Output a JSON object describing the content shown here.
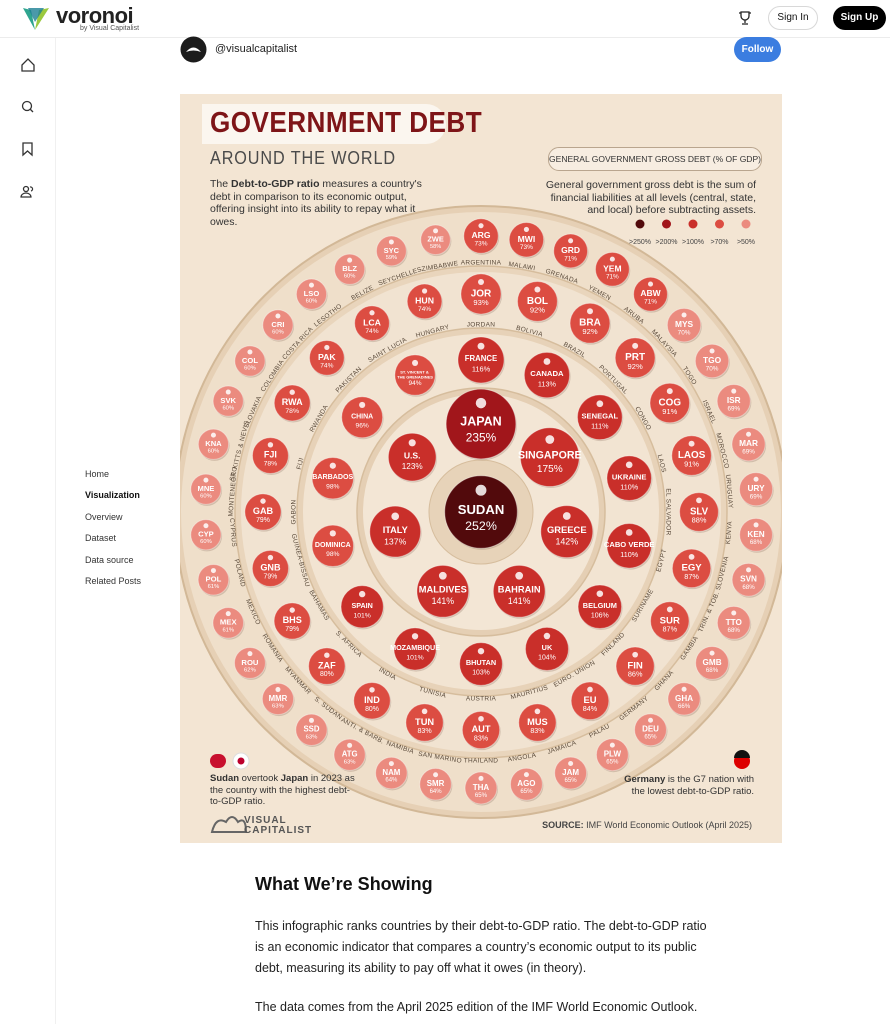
{
  "header": {
    "logo": "voronoi",
    "logo_sub": "by Visual Capitalist",
    "sign_in": "Sign In",
    "sign_up": "Sign Up"
  },
  "sidebar": {
    "nav": [
      "Home",
      "Visualization",
      "Overview",
      "Dataset",
      "Data source",
      "Related Posts"
    ]
  },
  "post": {
    "author": "@visualcapitalist",
    "follow": "Follow"
  },
  "infographic": {
    "title": "GOVERNMENT DEBT",
    "subtitle": "AROUND THE WORLD",
    "intro": [
      "The ",
      "Debt-to-GDP ratio",
      " measures a country's debt in comparison to its economic output, offering insight into its ability to repay what it owes."
    ],
    "legend_title": "GENERAL GOVERNMENT GROSS DEBT (% OF GDP)",
    "definition": "General government gross debt is the sum of financial liabilities at all levels (central, state, and local) before subtracting assets.",
    "legend": [
      {
        "label": ">250%",
        "min": 250,
        "color": "#520a0c"
      },
      {
        "label": ">200%",
        "min": 200,
        "color": "#a1161b"
      },
      {
        "label": ">100%",
        "min": 100,
        "color": "#c92f2a"
      },
      {
        "label": ">70%",
        "min": 70,
        "color": "#dc4d42"
      },
      {
        "label": ">50%",
        "min": 50,
        "color": "#eb8b7f"
      }
    ],
    "rings": [
      [
        {
          "name": "SUDAN",
          "value": 252,
          "label": "252%"
        }
      ],
      [
        {
          "name": "JAPAN",
          "value": 235,
          "label": "235%"
        },
        {
          "name": "SINGAPORE",
          "value": 175,
          "label": "175%"
        },
        {
          "name": "GREECE",
          "value": 142,
          "label": "142%"
        },
        {
          "name": "BAHRAIN",
          "value": 141,
          "label": "141%"
        },
        {
          "name": "MALDIVES",
          "value": 141,
          "label": "141%"
        },
        {
          "name": "ITALY",
          "value": 137,
          "label": "137%"
        },
        {
          "name": "U.S.",
          "value": 123,
          "label": "123%"
        }
      ],
      [
        {
          "name": "FRANCE",
          "value": 116,
          "label": "116%"
        },
        {
          "name": "CANADA",
          "value": 113,
          "label": "113%"
        },
        {
          "name": "SENEGAL",
          "value": 111,
          "label": "111%"
        },
        {
          "name": "UKRAINE",
          "value": 110,
          "label": "110%"
        },
        {
          "name": "CABO VERDE",
          "value": 110,
          "label": "110%"
        },
        {
          "name": "BELGIUM",
          "value": 106,
          "label": "106%"
        },
        {
          "name": "UK",
          "value": 104,
          "label": "104%"
        },
        {
          "name": "BHUTAN",
          "value": 103,
          "label": "103%"
        },
        {
          "name": "MOZAMBIQUE",
          "value": 101,
          "label": "101%"
        },
        {
          "name": "SPAIN",
          "value": 101,
          "label": "101%"
        },
        {
          "name": "DOMINICA",
          "value": 98,
          "label": "98%"
        },
        {
          "name": "BARBADOS",
          "value": 98,
          "label": "98%"
        },
        {
          "name": "CHINA",
          "value": 96,
          "label": "96%"
        },
        {
          "name": "ST. VINCENT & THE GRENADINES",
          "value": 94,
          "label": "94%"
        }
      ],
      [
        {
          "code": "JOR",
          "name": "JORDAN",
          "value": 93,
          "label": "93%"
        },
        {
          "code": "BOL",
          "name": "BOLIVIA",
          "value": 92,
          "label": "92%"
        },
        {
          "code": "BRA",
          "name": "BRAZIL",
          "value": 92,
          "label": "92%"
        },
        {
          "code": "PRT",
          "name": "PORTUGAL",
          "value": 92,
          "label": "92%"
        },
        {
          "code": "COG",
          "name": "CONGO",
          "value": 91,
          "label": "91%"
        },
        {
          "code": "LAOS",
          "name": "LAOS",
          "value": 91,
          "label": "91%"
        },
        {
          "code": "SLV",
          "name": "EL SALVADOR",
          "value": 88,
          "label": "88%"
        },
        {
          "code": "EGY",
          "name": "EGYPT",
          "value": 87,
          "label": "87%"
        },
        {
          "code": "SUR",
          "name": "SURINAME",
          "value": 87,
          "label": "87%"
        },
        {
          "code": "FIN",
          "name": "FINLAND",
          "value": 86,
          "label": "86%"
        },
        {
          "code": "EU",
          "name": "EURO. UNION",
          "value": 84,
          "label": "84%"
        },
        {
          "code": "MUS",
          "name": "MAURITIUS",
          "value": 83,
          "label": "83%"
        },
        {
          "code": "AUT",
          "name": "AUSTRIA",
          "value": 83,
          "label": "83%"
        },
        {
          "code": "TUN",
          "name": "TUNISIA",
          "value": 83,
          "label": "83%"
        },
        {
          "code": "IND",
          "name": "INDIA",
          "value": 80,
          "label": "80%"
        },
        {
          "code": "ZAF",
          "name": "S. AFRICA",
          "value": 80,
          "label": "80%"
        },
        {
          "code": "BHS",
          "name": "BAHAMAS",
          "value": 79,
          "label": "79%"
        },
        {
          "code": "GNB",
          "name": "GUINEA-BISSAU",
          "value": 79,
          "label": "79%"
        },
        {
          "code": "GAB",
          "name": "GABON",
          "value": 79,
          "label": "79%"
        },
        {
          "code": "FJI",
          "name": "FIJI",
          "value": 78,
          "label": "78%"
        },
        {
          "code": "RWA",
          "name": "RWANDA",
          "value": 78,
          "label": "78%"
        },
        {
          "code": "PAK",
          "name": "PAKISTAN",
          "value": 74,
          "label": "74%"
        },
        {
          "code": "LCA",
          "name": "SAINT LUCIA",
          "value": 74,
          "label": "74%"
        },
        {
          "code": "HUN",
          "name": "HUNGARY",
          "value": 74,
          "label": "74%"
        }
      ],
      [
        {
          "code": "ARG",
          "name": "ARGENTINA",
          "value": 73,
          "label": "73%"
        },
        {
          "code": "MWI",
          "name": "MALAWI",
          "value": 73,
          "label": "73%"
        },
        {
          "code": "GRD",
          "name": "GRENADA",
          "value": 71,
          "label": "71%"
        },
        {
          "code": "YEM",
          "name": "YEMEN",
          "value": 71,
          "label": "71%"
        },
        {
          "code": "ABW",
          "name": "ARUBA",
          "value": 71,
          "label": "71%"
        },
        {
          "code": "MYS",
          "name": "MALAYSIA",
          "value": 70,
          "label": "70%"
        },
        {
          "code": "TGO",
          "name": "TOGO",
          "value": 70,
          "label": "70%"
        },
        {
          "code": "ISR",
          "name": "ISRAEL",
          "value": 69,
          "label": "69%"
        },
        {
          "code": "MAR",
          "name": "MOROCCO",
          "value": 69,
          "label": "69%"
        },
        {
          "code": "URY",
          "name": "URUGUAY",
          "value": 69,
          "label": "69%"
        },
        {
          "code": "KEN",
          "name": "KENYA",
          "value": 68,
          "label": "68%"
        },
        {
          "code": "SVN",
          "name": "SLOVENIA",
          "value": 68,
          "label": "68%"
        },
        {
          "code": "TTO",
          "name": "TRIN. & TOB.",
          "value": 68,
          "label": "68%"
        },
        {
          "code": "GMB",
          "name": "GAMBIA",
          "value": 68,
          "label": "68%"
        },
        {
          "code": "GHA",
          "name": "GHANA",
          "value": 66,
          "label": "66%"
        },
        {
          "code": "DEU",
          "name": "GERMANY",
          "value": 65,
          "label": "65%"
        },
        {
          "code": "PLW",
          "name": "PALAU",
          "value": 65,
          "label": "65%"
        },
        {
          "code": "JAM",
          "name": "JAMAICA",
          "value": 65,
          "label": "65%"
        },
        {
          "code": "AGO",
          "name": "ANGOLA",
          "value": 65,
          "label": "65%"
        },
        {
          "code": "THA",
          "name": "THAILAND",
          "value": 65,
          "label": "65%"
        },
        {
          "code": "SMR",
          "name": "SAN MARINO",
          "value": 64,
          "label": "64%"
        },
        {
          "code": "NAM",
          "name": "NAMIBIA",
          "value": 64,
          "label": "64%"
        },
        {
          "code": "ATG",
          "name": "ANTI. & BARB.",
          "value": 63,
          "label": "63%"
        },
        {
          "code": "SSD",
          "name": "S. SUDAN",
          "value": 63,
          "label": "63%"
        },
        {
          "code": "MMR",
          "name": "MYANMAR",
          "value": 63,
          "label": "63%"
        },
        {
          "code": "ROU",
          "name": "ROMANIA",
          "value": 62,
          "label": "62%"
        },
        {
          "code": "MEX",
          "name": "MEXICO",
          "value": 61,
          "label": "61%"
        },
        {
          "code": "POL",
          "name": "POLAND",
          "value": 61,
          "label": "61%"
        },
        {
          "code": "CYP",
          "name": "CYPRUS",
          "value": 60,
          "label": "60%"
        },
        {
          "code": "MNE",
          "name": "MONTENEGRO",
          "value": 60,
          "label": "60%"
        },
        {
          "code": "KNA",
          "name": "ST. KITTS & NEVIS",
          "value": 60,
          "label": "60%"
        },
        {
          "code": "SVK",
          "name": "SLOVAKIA",
          "value": 60,
          "label": "60%"
        },
        {
          "code": "COL",
          "name": "COLOMBIA",
          "value": 60,
          "label": "60%"
        },
        {
          "code": "CRI",
          "name": "COSTA RICA",
          "value": 60,
          "label": "60%"
        },
        {
          "code": "LSO",
          "name": "LESOTHO",
          "value": 60,
          "label": "60%"
        },
        {
          "code": "BLZ",
          "name": "BELIZE",
          "value": 60,
          "label": "60%"
        },
        {
          "code": "SYC",
          "name": "SEYCHELLES",
          "value": 59,
          "label": "59%"
        },
        {
          "code": "ZWE",
          "name": "ZIMBABWE",
          "value": 58,
          "label": "58%"
        }
      ]
    ],
    "note_left": [
      "Sudan",
      " overtook ",
      "Japan",
      " in 2023 as the country with the highest debt-to-GDP ratio."
    ],
    "note_right": [
      "Germany",
      " is the G7 nation with the lowest debt-to-GDP ratio."
    ],
    "brand": [
      "VISUAL",
      "CAPITALIST"
    ],
    "source_label": "SOURCE:",
    "source": "IMF World Economic Outlook (April 2025)"
  },
  "article": {
    "heading": "What We’re Showing",
    "paragraphs": [
      "This infographic ranks countries by their debt-to-GDP ratio. The debt-to-GDP ratio is an economic indicator that compares a country’s economic output to its public debt, measuring its ability to pay off what it owes (in theory).",
      "The data comes from the April 2025 edition of the IMF World Economic Outlook."
    ]
  }
}
